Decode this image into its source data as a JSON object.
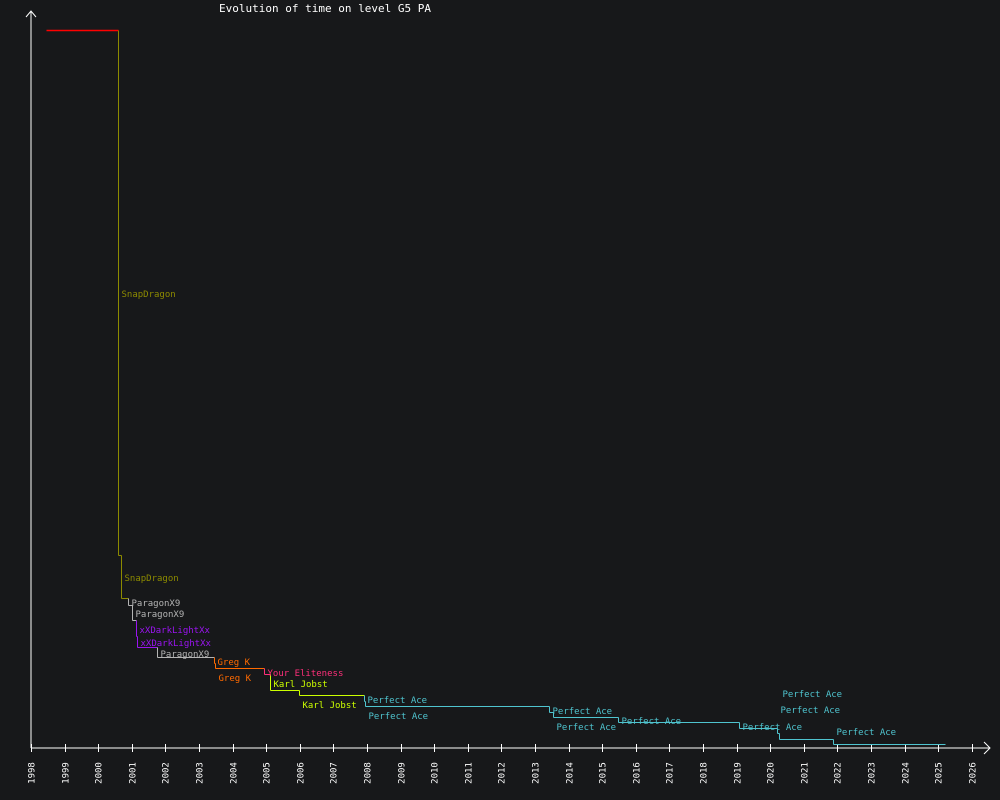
{
  "chart_data": {
    "type": "line",
    "subtype": "step",
    "title": "Evolution of time on level G5 PA",
    "xlabel": "",
    "ylabel": "",
    "xlim": [
      1998,
      2026.6
    ],
    "x_ticks": [
      "1998",
      "1999",
      "2000",
      "2001",
      "2002",
      "2003",
      "2004",
      "2005",
      "2006",
      "2007",
      "2008",
      "2009",
      "2010",
      "2011",
      "2012",
      "2013",
      "2014",
      "2015",
      "2016",
      "2017",
      "2018",
      "2019",
      "2020",
      "2021",
      "2022",
      "2023",
      "2024",
      "2025",
      "2026"
    ],
    "y_scale_note": "y values are relative record times (fraction of first record); the y axis has no printed ticks",
    "grid": false,
    "end_year": 2025.2,
    "records": [
      {
        "year": 1998.45,
        "value": 1.0,
        "holder": "",
        "color": "#ff0000"
      },
      {
        "year": 2000.59,
        "value": 0.269,
        "holder": "SnapDragon",
        "color": "#8c8a00"
      },
      {
        "year": 2000.68,
        "value": 0.209,
        "holder": "SnapDragon",
        "color": "#8c8a00"
      },
      {
        "year": 2000.89,
        "value": 0.199,
        "holder": "ParagonX9",
        "color": "#b4b4b4"
      },
      {
        "year": 2001.01,
        "value": 0.178,
        "holder": "ParagonX9",
        "color": "#b4b4b4"
      },
      {
        "year": 2001.13,
        "value": 0.156,
        "holder": "xXDarkLightXx",
        "color": "#9a14f0"
      },
      {
        "year": 2001.15,
        "value": 0.141,
        "holder": "xXDarkLightXx",
        "color": "#9a14f0"
      },
      {
        "year": 2001.75,
        "value": 0.127,
        "holder": "ParagonX9",
        "color": "#b4b4b4"
      },
      {
        "year": 2003.45,
        "value": 0.118,
        "holder": "Greg K",
        "color": "#ff6a00"
      },
      {
        "year": 2003.48,
        "value": 0.111,
        "holder": "Greg K",
        "color": "#ff6a00"
      },
      {
        "year": 2004.93,
        "value": 0.103,
        "holder": "Your Eliteness",
        "color": "#ff2f7a"
      },
      {
        "year": 2005.11,
        "value": 0.081,
        "holder": "Karl Jobst",
        "color": "#ccff00"
      },
      {
        "year": 2005.98,
        "value": 0.074,
        "holder": "Karl Jobst",
        "color": "#ccff00"
      },
      {
        "year": 2007.91,
        "value": 0.065,
        "holder": "Perfect Ace",
        "color": "#4fc4cf"
      },
      {
        "year": 2007.94,
        "value": 0.058,
        "holder": "Perfect Ace",
        "color": "#4fc4cf"
      },
      {
        "year": 2013.42,
        "value": 0.05,
        "holder": "Perfect Ace",
        "color": "#4fc4cf"
      },
      {
        "year": 2013.54,
        "value": 0.043,
        "holder": "Perfect Ace",
        "color": "#4fc4cf"
      },
      {
        "year": 2015.47,
        "value": 0.036,
        "holder": "Perfect Ace",
        "color": "#4fc4cf"
      },
      {
        "year": 2019.07,
        "value": 0.028,
        "holder": "Perfect Ace",
        "color": "#4fc4cf"
      },
      {
        "year": 2020.2,
        "value": 0.021,
        "holder": "Perfect Ace",
        "color": "#4fc4cf"
      },
      {
        "year": 2020.26,
        "value": 0.013,
        "holder": "Perfect Ace",
        "color": "#4fc4cf"
      },
      {
        "year": 2021.87,
        "value": 0.006,
        "holder": "Perfect Ace",
        "color": "#4fc4cf"
      }
    ],
    "axis_color": "#ffffff",
    "background": "#17181a"
  }
}
